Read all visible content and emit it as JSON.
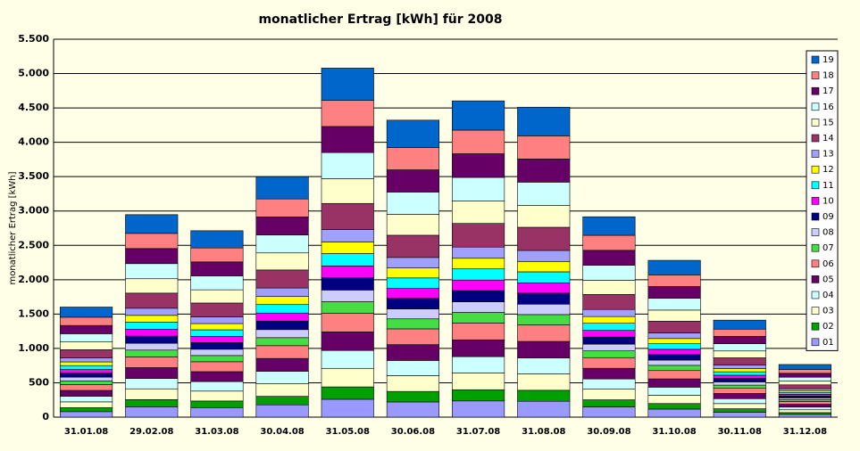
{
  "chart_data": {
    "type": "stacked_bar",
    "title": "monatlicher Ertrag [kWh] für 2008",
    "y_label": "monatlicher Ertrag [kWh]",
    "categories": [
      "31.01.08",
      "29.02.08",
      "31.03.08",
      "30.04.08",
      "31.05.08",
      "30.06.08",
      "31.07.08",
      "31.08.08",
      "30.09.08",
      "31.10.08",
      "30.11.08",
      "31.12.08"
    ],
    "ylim": [
      0,
      5500
    ],
    "yticks": [
      0,
      500,
      {
        "value": 1000,
        "label": "1.000"
      },
      {
        "value": 1500,
        "label": "1.500"
      },
      {
        "value": 2000,
        "label": "2.000"
      },
      {
        "value": 2500,
        "label": "2.500"
      },
      {
        "value": 3000,
        "label": "3.000"
      },
      {
        "value": 3500,
        "label": "3.500"
      },
      {
        "value": 4000,
        "label": "4.000"
      },
      {
        "value": 4500,
        "label": "4.500"
      },
      {
        "value": 5000,
        "label": "5.000"
      },
      {
        "value": 5500,
        "label": "5.500"
      }
    ],
    "grid": true,
    "legend": "right",
    "series": [
      {
        "name": "01",
        "color": "#9999ff",
        "values": [
          80,
          151,
          139,
          179,
          260,
          221,
          236,
          231,
          149,
          117,
          72,
          39
        ]
      },
      {
        "name": "02",
        "color": "#00a000",
        "values": [
          57,
          104,
          96,
          124,
          180,
          153,
          163,
          160,
          103,
          81,
          50,
          27
        ]
      },
      {
        "name": "03",
        "color": "#ffffcc",
        "values": [
          85,
          157,
          144,
          186,
          270,
          230,
          245,
          240,
          155,
          121,
          75,
          41
        ]
      },
      {
        "name": "04",
        "color": "#ccffff",
        "values": [
          82,
          151,
          139,
          179,
          260,
          221,
          236,
          231,
          149,
          117,
          72,
          39
        ]
      },
      {
        "name": "05",
        "color": "#660066",
        "values": [
          85,
          157,
          144,
          186,
          270,
          230,
          245,
          240,
          155,
          121,
          75,
          41
        ]
      },
      {
        "name": "06",
        "color": "#ff8080",
        "values": [
          85,
          157,
          144,
          186,
          270,
          230,
          245,
          240,
          155,
          121,
          75,
          41
        ]
      },
      {
        "name": "07",
        "color": "#44dd44",
        "values": [
          54,
          99,
          91,
          117,
          170,
          145,
          154,
          151,
          98,
          76,
          47,
          26
        ]
      },
      {
        "name": "08",
        "color": "#ccccff",
        "values": [
          54,
          99,
          91,
          117,
          170,
          145,
          154,
          151,
          98,
          76,
          47,
          26
        ]
      },
      {
        "name": "09",
        "color": "#000080",
        "values": [
          57,
          104,
          96,
          124,
          180,
          153,
          163,
          160,
          103,
          81,
          50,
          27
        ]
      },
      {
        "name": "10",
        "color": "#ff00ff",
        "values": [
          54,
          99,
          91,
          117,
          170,
          145,
          154,
          151,
          98,
          76,
          47,
          26
        ]
      },
      {
        "name": "11",
        "color": "#00ffff",
        "values": [
          57,
          104,
          96,
          124,
          180,
          153,
          163,
          160,
          103,
          81,
          50,
          27
        ]
      },
      {
        "name": "12",
        "color": "#ffff00",
        "values": [
          54,
          99,
          91,
          117,
          170,
          145,
          154,
          151,
          98,
          76,
          47,
          26
        ]
      },
      {
        "name": "13",
        "color": "#a0a0ff",
        "values": [
          57,
          104,
          96,
          124,
          180,
          153,
          163,
          160,
          103,
          81,
          50,
          27
        ]
      },
      {
        "name": "14",
        "color": "#993366",
        "values": [
          120,
          220,
          203,
          262,
          380,
          323,
          344,
          337,
          218,
          171,
          106,
          57
        ]
      },
      {
        "name": "15",
        "color": "#ffffcc",
        "values": [
          113,
          209,
          192,
          248,
          360,
          306,
          326,
          320,
          207,
          162,
          100,
          54
        ]
      },
      {
        "name": "16",
        "color": "#ccffff",
        "values": [
          120,
          220,
          203,
          262,
          380,
          323,
          344,
          337,
          218,
          171,
          106,
          57
        ]
      },
      {
        "name": "17",
        "color": "#660066",
        "values": [
          120,
          220,
          203,
          262,
          380,
          323,
          344,
          337,
          218,
          171,
          106,
          57
        ]
      },
      {
        "name": "18",
        "color": "#ff8080",
        "values": [
          120,
          220,
          203,
          262,
          380,
          323,
          344,
          337,
          218,
          171,
          106,
          57
        ]
      },
      {
        "name": "19",
        "color": "#0066cc",
        "values": [
          148,
          273,
          251,
          324,
          470,
          400,
          426,
          417,
          270,
          211,
          131,
          71
        ]
      }
    ]
  }
}
